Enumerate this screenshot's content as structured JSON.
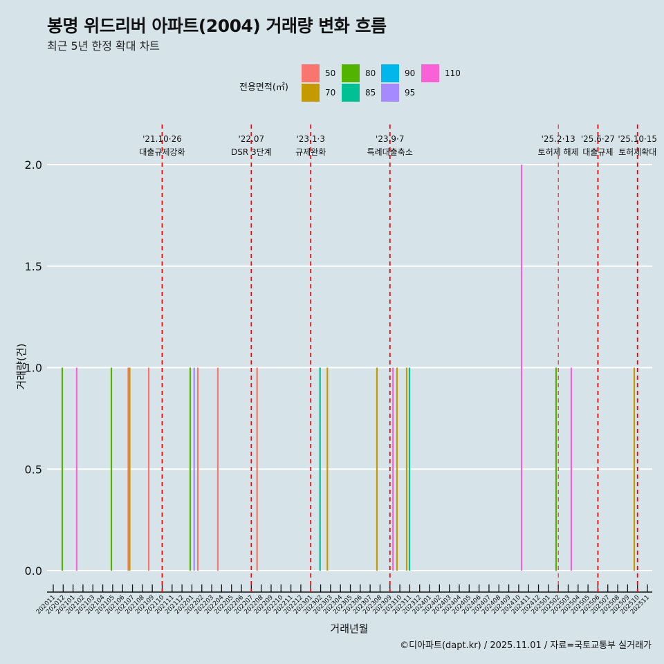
{
  "title": "봉명 위드리버 아파트(2004) 거래량 변화 흐름",
  "subtitle": "최근 5년 한정 확대 차트",
  "caption": "©디아파트(dapt.kr) / 2025.11.01 / 자료=국토교통부 실거래가",
  "legend": {
    "title": "전용면적(㎡)",
    "items": [
      {
        "label": "50",
        "color": "#f8766d"
      },
      {
        "label": "70",
        "color": "#c49a00"
      },
      {
        "label": "80",
        "color": "#53b400"
      },
      {
        "label": "85",
        "color": "#00c094"
      },
      {
        "label": "90",
        "color": "#00b6eb"
      },
      {
        "label": "95",
        "color": "#a58aff"
      },
      {
        "label": "110",
        "color": "#fb61d7"
      }
    ]
  },
  "chart_data": {
    "type": "bar",
    "title": "봉명 위드리버 아파트(2004) 거래량 변화 흐름",
    "xlabel": "거래년월",
    "ylabel": "거래량(건)",
    "ylim": [
      0,
      2
    ],
    "yticks": [
      "0.0",
      "0.5",
      "1.0",
      "1.5",
      "2.0"
    ],
    "x_months": [
      "202011",
      "202012",
      "202101",
      "202102",
      "202103",
      "202104",
      "202105",
      "202106",
      "202107",
      "202108",
      "202109",
      "202110",
      "202111",
      "202112",
      "202201",
      "202202",
      "202203",
      "202204",
      "202205",
      "202206",
      "202207",
      "202208",
      "202209",
      "202210",
      "202211",
      "202212",
      "202301",
      "202302",
      "202303",
      "202304",
      "202305",
      "202306",
      "202307",
      "202308",
      "202309",
      "202310",
      "202311",
      "202312",
      "202401",
      "202402",
      "202403",
      "202404",
      "202405",
      "202406",
      "202407",
      "202408",
      "202409",
      "202410",
      "202411",
      "202412",
      "202501",
      "202502",
      "202503",
      "202504",
      "202505",
      "202506",
      "202507",
      "202508",
      "202509",
      "202510",
      "202511"
    ],
    "bars": [
      {
        "date": "2020-11-28",
        "t": 0.91,
        "area": "80",
        "count": 1
      },
      {
        "date": "2021-01-12",
        "t": 2.37,
        "area": "110",
        "count": 1
      },
      {
        "date": "2021-05-27",
        "t": 5.87,
        "area": "80",
        "count": 1
      },
      {
        "date": "2021-06-18",
        "t": 7.58,
        "area": "50",
        "count": 1
      },
      {
        "date": "2021-06-22",
        "t": 7.72,
        "area": "70",
        "count": 1
      },
      {
        "date": "2021-08-20",
        "t": 9.64,
        "area": "50",
        "count": 1
      },
      {
        "date": "2021-12-25",
        "t": 13.83,
        "area": "80",
        "count": 1
      },
      {
        "date": "2022-01-07",
        "t": 14.23,
        "area": "95",
        "count": 1
      },
      {
        "date": "2022-01-18",
        "t": 14.6,
        "area": "50",
        "count": 1
      },
      {
        "date": "2022-03-19",
        "t": 16.62,
        "area": "50",
        "count": 1
      },
      {
        "date": "2022-07-18",
        "t": 20.58,
        "area": "50",
        "count": 1
      },
      {
        "date": "2023-01-29",
        "t": 26.94,
        "area": "85",
        "count": 1
      },
      {
        "date": "2023-02-20",
        "t": 27.68,
        "area": "70",
        "count": 1
      },
      {
        "date": "2023-07-21",
        "t": 32.69,
        "area": "70",
        "count": 1
      },
      {
        "date": "2023-09-10",
        "t": 34.31,
        "area": "110",
        "count": 1
      },
      {
        "date": "2023-09-22",
        "t": 34.71,
        "area": "70",
        "count": 1
      },
      {
        "date": "2023-10-21",
        "t": 35.69,
        "area": "70",
        "count": 1
      },
      {
        "date": "2023-10-30",
        "t": 35.97,
        "area": "85",
        "count": 1
      },
      {
        "date": "2024-10-09",
        "t": 47.29,
        "area": "110",
        "count": 2
      },
      {
        "date": "2025-01-24",
        "t": 50.78,
        "area": "80",
        "count": 1
      },
      {
        "date": "2025-03-10",
        "t": 52.31,
        "area": "110",
        "count": 1
      },
      {
        "date": "2025-09-20",
        "t": 58.67,
        "area": "70",
        "count": 1
      }
    ],
    "events": [
      {
        "t": 11,
        "date": "'21.10·26",
        "label": "대출규제강화"
      },
      {
        "t": 20,
        "date": "'22.07",
        "label": "DSR 3단계"
      },
      {
        "t": 26,
        "date": "'23.1·3",
        "label": "규제완화"
      },
      {
        "t": 34,
        "date": "'23.9·7",
        "label": "특례대출축소"
      },
      {
        "t": 51,
        "date": "'25.2·13",
        "label": "토허제 해제",
        "thin": true
      },
      {
        "t": 55,
        "date": "'25.6·27",
        "label": "대출규제"
      },
      {
        "t": 59,
        "date": "'25.10·15",
        "label": "토허제확대"
      }
    ]
  }
}
